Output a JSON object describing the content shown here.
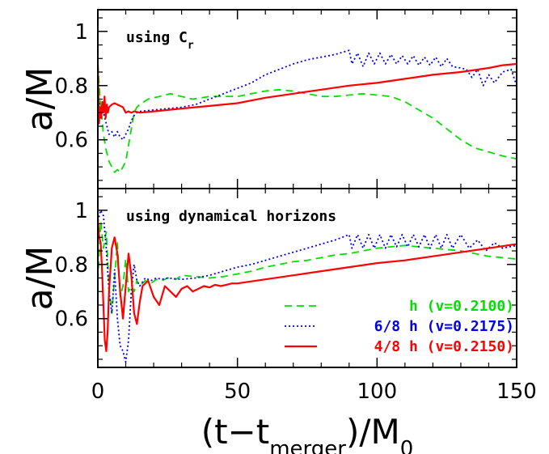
{
  "chart_data": {
    "type": "line",
    "xlabel": "(t−t_merger)/M_0",
    "xlabel_parts": {
      "open": "(t−t",
      "sub": "merger",
      "mid": ")/M",
      "sub2": "0"
    },
    "xlim": [
      0,
      150
    ],
    "xticks": [
      "0",
      "50",
      "100",
      "150"
    ],
    "xtick_values": [
      0,
      50,
      100,
      150
    ],
    "legend_location": "bottom-right of lower panel",
    "panels": [
      {
        "annotation": "using C",
        "annotation_sub": "r",
        "ylabel": "a/M",
        "ylim": [
          0.42,
          1.08
        ],
        "yticks": [
          "0.6",
          "0.8",
          "1"
        ],
        "ytick_values": [
          0.6,
          0.8,
          1.0
        ],
        "series": [
          {
            "name": "h (v=0.2100)",
            "color": "#00e000",
            "dash": "dashed",
            "x": [
              0,
              0.5,
              1,
              1.5,
              2,
              3,
              4,
              5,
              6,
              7,
              8,
              9,
              10,
              11,
              12,
              13,
              14,
              15,
              18,
              22,
              26,
              30,
              34,
              40,
              45,
              50,
              55,
              60,
              65,
              70,
              75,
              80,
              85,
              90,
              95,
              100,
              105,
              110,
              115,
              120,
              125,
              130,
              135,
              140,
              145,
              150
            ],
            "y": [
              0.88,
              0.8,
              0.72,
              0.68,
              0.62,
              0.56,
              0.52,
              0.5,
              0.48,
              0.49,
              0.48,
              0.5,
              0.52,
              0.58,
              0.64,
              0.7,
              0.72,
              0.73,
              0.75,
              0.76,
              0.77,
              0.76,
              0.75,
              0.76,
              0.76,
              0.76,
              0.77,
              0.78,
              0.785,
              0.78,
              0.77,
              0.76,
              0.76,
              0.765,
              0.77,
              0.765,
              0.76,
              0.74,
              0.71,
              0.68,
              0.64,
              0.6,
              0.57,
              0.555,
              0.54,
              0.53
            ]
          },
          {
            "name": "6/8 h (v=0.2175)",
            "color": "#0000ee",
            "dash": "dotted",
            "x": [
              0,
              1,
              2,
              3,
              4,
              5,
              6,
              7,
              8,
              9,
              10,
              11,
              12,
              13,
              14,
              15,
              20,
              25,
              30,
              35,
              40,
              45,
              50,
              55,
              60,
              65,
              70,
              75,
              80,
              85,
              90,
              91,
              93,
              95,
              97,
              99,
              101,
              103,
              105,
              107,
              109,
              111,
              113,
              115,
              117,
              119,
              121,
              123,
              125,
              127,
              130,
              132,
              134,
              136,
              138,
              140,
              142,
              145,
              148,
              150
            ],
            "y": [
              0.75,
              0.72,
              0.7,
              0.66,
              0.62,
              0.63,
              0.61,
              0.63,
              0.61,
              0.6,
              0.62,
              0.64,
              0.67,
              0.69,
              0.7,
              0.705,
              0.71,
              0.715,
              0.72,
              0.73,
              0.75,
              0.77,
              0.79,
              0.81,
              0.84,
              0.86,
              0.88,
              0.895,
              0.905,
              0.915,
              0.93,
              0.88,
              0.92,
              0.87,
              0.92,
              0.88,
              0.92,
              0.88,
              0.915,
              0.88,
              0.91,
              0.88,
              0.91,
              0.875,
              0.905,
              0.875,
              0.905,
              0.87,
              0.9,
              0.87,
              0.865,
              0.86,
              0.83,
              0.86,
              0.8,
              0.84,
              0.81,
              0.85,
              0.86,
              0.8
            ]
          },
          {
            "name": "4/8 h (v=0.2150)",
            "color": "#ff0000",
            "dash": "solid",
            "x": [
              0,
              0.4,
              0.8,
              1.2,
              1.6,
              2,
              2.4,
              2.8,
              3.2,
              3.6,
              4,
              5,
              6,
              7,
              8,
              9,
              10,
              11,
              12,
              13,
              15,
              20,
              25,
              30,
              35,
              40,
              50,
              60,
              70,
              80,
              90,
              100,
              110,
              120,
              130,
              140,
              145,
              150
            ],
            "y": [
              0.88,
              0.66,
              0.72,
              0.68,
              0.74,
              0.7,
              0.76,
              0.68,
              0.73,
              0.7,
              0.72,
              0.73,
              0.735,
              0.73,
              0.725,
              0.72,
              0.7,
              0.705,
              0.7,
              0.705,
              0.7,
              0.705,
              0.71,
              0.715,
              0.72,
              0.725,
              0.735,
              0.755,
              0.77,
              0.785,
              0.8,
              0.81,
              0.825,
              0.84,
              0.85,
              0.865,
              0.875,
              0.88
            ]
          }
        ]
      },
      {
        "annotation": "using dynamical horizons",
        "ylabel": "a/M",
        "ylim": [
          0.42,
          1.08
        ],
        "yticks": [
          "0.6",
          "0.8",
          "1"
        ],
        "ytick_values": [
          0.6,
          0.8,
          1.0
        ],
        "series": [
          {
            "name": "h (v=0.2100)",
            "color": "#00e000",
            "dash": "dashed",
            "x": [
              0,
              1,
              2,
              3,
              4,
              5,
              6,
              7,
              8,
              9,
              10,
              11,
              12,
              13,
              14,
              15,
              17,
              19,
              21,
              23,
              25,
              28,
              30,
              35,
              40,
              45,
              50,
              55,
              60,
              65,
              70,
              75,
              80,
              85,
              90,
              95,
              100,
              105,
              110,
              115,
              120,
              125,
              130,
              135,
              140,
              145,
              150
            ],
            "y": [
              0.74,
              0.96,
              0.86,
              0.92,
              0.72,
              0.62,
              0.75,
              0.88,
              0.68,
              0.72,
              0.82,
              0.7,
              0.72,
              0.7,
              0.74,
              0.72,
              0.74,
              0.73,
              0.745,
              0.74,
              0.75,
              0.745,
              0.76,
              0.755,
              0.75,
              0.755,
              0.765,
              0.775,
              0.79,
              0.8,
              0.81,
              0.815,
              0.825,
              0.835,
              0.84,
              0.85,
              0.86,
              0.865,
              0.87,
              0.865,
              0.86,
              0.855,
              0.85,
              0.84,
              0.83,
              0.825,
              0.82
            ]
          },
          {
            "name": "6/8 h (v=0.2175)",
            "color": "#0000ee",
            "dash": "dotted",
            "x": [
              0,
              1,
              2,
              3,
              4,
              5,
              6,
              7,
              8,
              9,
              10,
              11,
              12,
              13,
              14,
              15,
              17,
              19,
              21,
              23,
              25,
              30,
              35,
              40,
              45,
              50,
              55,
              60,
              65,
              70,
              75,
              80,
              85,
              90,
              91,
              93,
              95,
              97,
              99,
              101,
              103,
              105,
              107,
              109,
              111,
              113,
              115,
              117,
              119,
              121,
              123,
              125,
              127,
              130,
              133,
              136,
              139,
              142,
              145,
              150
            ],
            "y": [
              0.96,
              1.0,
              0.98,
              0.86,
              0.7,
              0.62,
              0.78,
              0.6,
              0.5,
              0.48,
              0.44,
              0.52,
              0.7,
              0.8,
              0.74,
              0.72,
              0.75,
              0.74,
              0.75,
              0.745,
              0.75,
              0.745,
              0.75,
              0.76,
              0.775,
              0.79,
              0.8,
              0.815,
              0.83,
              0.845,
              0.86,
              0.875,
              0.89,
              0.91,
              0.86,
              0.91,
              0.86,
              0.91,
              0.86,
              0.91,
              0.86,
              0.91,
              0.865,
              0.91,
              0.865,
              0.91,
              0.865,
              0.91,
              0.86,
              0.91,
              0.86,
              0.91,
              0.86,
              0.91,
              0.86,
              0.89,
              0.85,
              0.88,
              0.86,
              0.87
            ]
          },
          {
            "name": "4/8 h (v=0.2150)",
            "color": "#ff0000",
            "dash": "solid",
            "x": [
              0,
              0.5,
              1,
              1.5,
              2,
              2.5,
              3,
              3.5,
              4,
              5,
              6,
              7,
              8,
              9,
              10,
              11,
              12,
              13,
              14,
              15,
              16,
              18,
              20,
              22,
              24,
              26,
              28,
              30,
              32,
              34,
              36,
              38,
              40,
              42,
              44,
              46,
              48,
              50,
              60,
              70,
              80,
              90,
              100,
              110,
              120,
              130,
              140,
              150
            ],
            "y": [
              0.97,
              0.9,
              0.88,
              0.78,
              0.65,
              0.52,
              0.48,
              0.55,
              0.7,
              0.86,
              0.9,
              0.84,
              0.7,
              0.6,
              0.72,
              0.84,
              0.76,
              0.62,
              0.58,
              0.66,
              0.72,
              0.74,
              0.68,
              0.65,
              0.72,
              0.7,
              0.68,
              0.71,
              0.72,
              0.7,
              0.71,
              0.72,
              0.715,
              0.725,
              0.72,
              0.725,
              0.73,
              0.73,
              0.745,
              0.76,
              0.775,
              0.79,
              0.805,
              0.815,
              0.83,
              0.845,
              0.86,
              0.875
            ]
          }
        ]
      }
    ],
    "legend": [
      {
        "label": "h (v=0.2100)",
        "color": "#00e000",
        "dash": "dashed"
      },
      {
        "label": "6/8 h (v=0.2175)",
        "color": "#0000ee",
        "dash": "dotted"
      },
      {
        "label": "4/8 h (v=0.2150)",
        "color": "#ff0000",
        "dash": "solid"
      }
    ]
  }
}
